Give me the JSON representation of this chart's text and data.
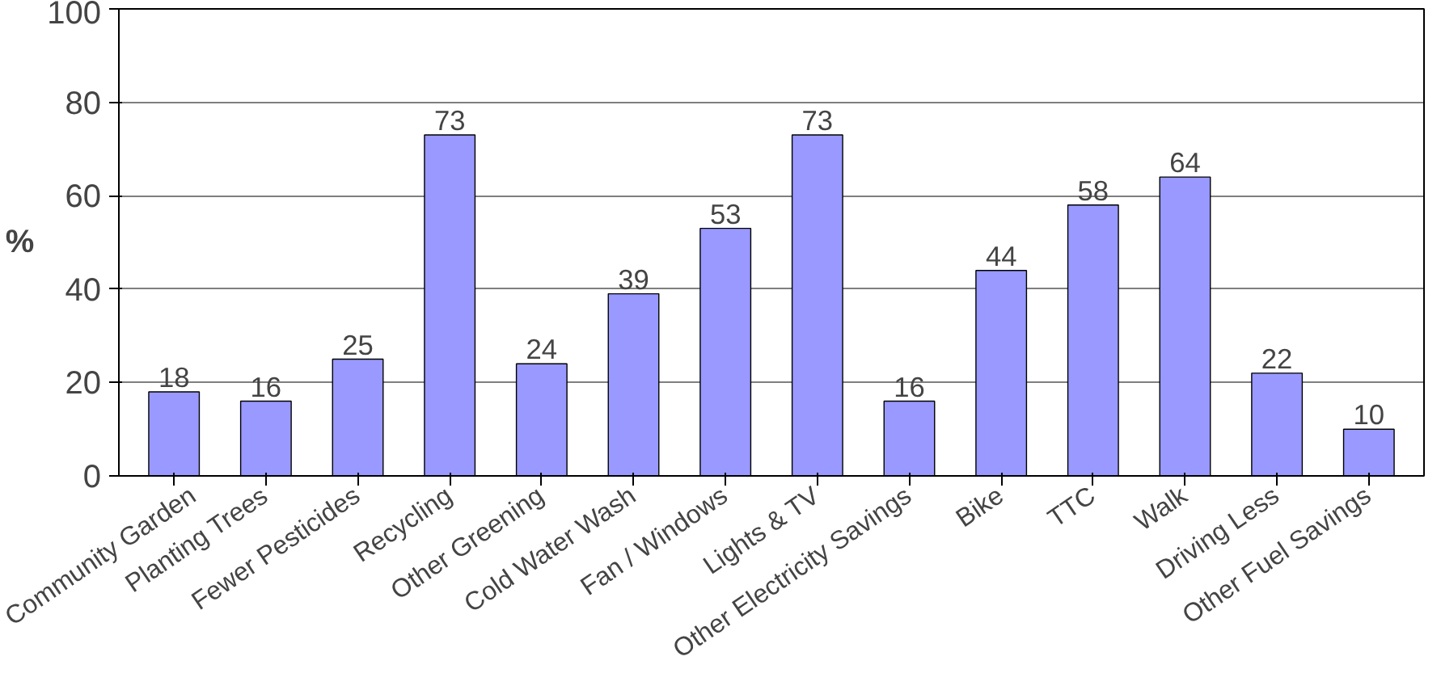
{
  "chart_data": {
    "type": "bar",
    "ylabel": "%",
    "categories": [
      "Community Garden",
      "Planting Trees",
      "Fewer Pesticides",
      "Recycling",
      "Other Greening",
      "Cold Water Wash",
      "Fan / Windows",
      "Lights & TV",
      "Other Electricity Savings",
      "Bike",
      "TTC",
      "Walk",
      "Driving Less",
      "Other Fuel Savings"
    ],
    "values": [
      18,
      16,
      25,
      73,
      24,
      39,
      53,
      73,
      16,
      44,
      58,
      64,
      22,
      10
    ],
    "color": "#9999ff",
    "ylim": [
      0,
      100
    ],
    "yticks": [
      0,
      20,
      40,
      60,
      80,
      100
    ],
    "grid": "y",
    "data_labels": true
  }
}
